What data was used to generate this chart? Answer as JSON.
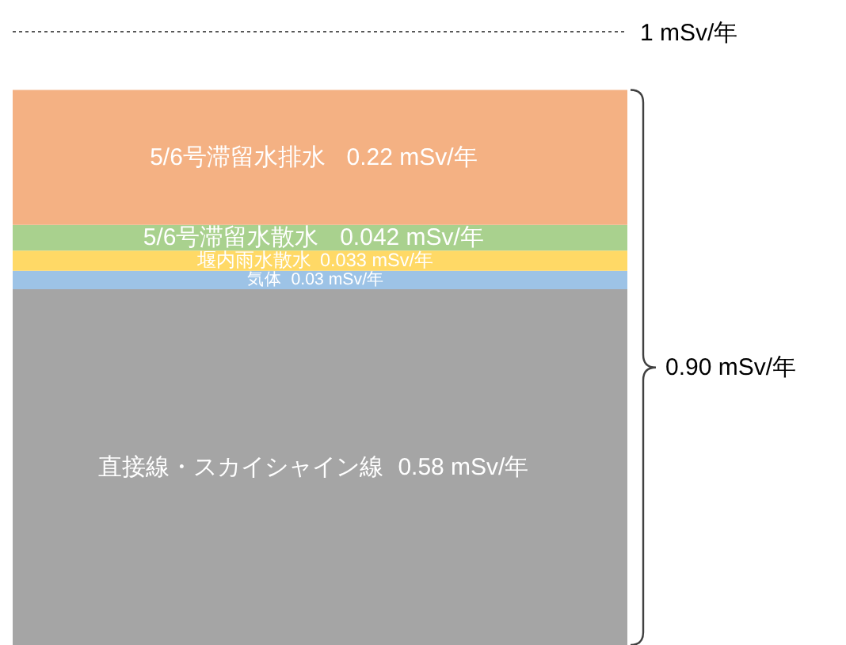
{
  "chart_data": {
    "type": "bar",
    "stacked": true,
    "categories": [
      null
    ],
    "series": [
      {
        "name": "直接線・スカイシャイン線",
        "color": "#a5a5a5",
        "values": [
          0.58
        ],
        "value_labels": [
          "0.58 mSv/年"
        ]
      },
      {
        "name": "気体",
        "color": "#9dc3e6",
        "values": [
          0.03
        ],
        "value_labels": [
          "0.03 mSv/年"
        ]
      },
      {
        "name": "堰内雨水散水",
        "color": "#ffd966",
        "values": [
          0.033
        ],
        "value_labels": [
          "0.033 mSv/年"
        ]
      },
      {
        "name": "5/6号滞留水散水",
        "color": "#a9d18e",
        "values": [
          0.042
        ],
        "value_labels": [
          "0.042 mSv/年"
        ]
      },
      {
        "name": "5/6号滞留水排水",
        "color": "#f4b183",
        "values": [
          0.22
        ],
        "value_labels": [
          "0.22 mSv/年"
        ]
      }
    ],
    "ref_lines": [
      {
        "axis": "y",
        "value": 1,
        "label": "1 mSv/年",
        "line_style": "dotted",
        "color": "#595959"
      }
    ],
    "annotations": [
      "0.90 mSv/年"
    ]
  }
}
